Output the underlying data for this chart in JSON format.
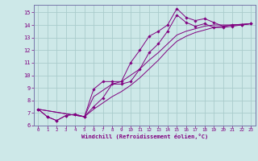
{
  "xlabel": "Windchill (Refroidissement éolien,°C)",
  "bg_color": "#cde8e8",
  "grid_color": "#aacccc",
  "line_color": "#800080",
  "spine_color": "#7777aa",
  "xlim": [
    -0.5,
    23.5
  ],
  "ylim": [
    6,
    15.6
  ],
  "xticks": [
    0,
    1,
    2,
    3,
    4,
    5,
    6,
    7,
    8,
    9,
    10,
    11,
    12,
    13,
    14,
    15,
    16,
    17,
    18,
    19,
    20,
    21,
    22,
    23
  ],
  "yticks": [
    6,
    7,
    8,
    9,
    10,
    11,
    12,
    13,
    14,
    15
  ],
  "lines": [
    {
      "x": [
        0,
        1,
        2,
        3,
        4,
        5,
        6,
        7,
        8,
        9,
        10,
        11,
        12,
        13,
        14,
        15,
        16,
        17,
        18,
        19,
        20,
        21,
        22,
        23
      ],
      "y": [
        7.3,
        6.7,
        6.4,
        6.8,
        6.9,
        6.7,
        8.9,
        9.5,
        9.5,
        9.5,
        11.0,
        12.0,
        13.1,
        13.5,
        14.0,
        15.3,
        14.6,
        14.35,
        14.5,
        14.2,
        13.9,
        14.0,
        14.0,
        14.1
      ],
      "has_markers": true
    },
    {
      "x": [
        0,
        1,
        2,
        3,
        4,
        5,
        6,
        7,
        8,
        9,
        10,
        11,
        12,
        13,
        14,
        15,
        16,
        17,
        18,
        19,
        20,
        21,
        22,
        23
      ],
      "y": [
        7.3,
        6.7,
        6.4,
        6.8,
        6.9,
        6.7,
        7.5,
        8.2,
        9.3,
        9.3,
        9.5,
        10.5,
        11.8,
        12.5,
        13.5,
        14.8,
        14.2,
        13.9,
        14.1,
        13.8,
        13.8,
        13.9,
        14.0,
        14.1
      ],
      "has_markers": true
    },
    {
      "x": [
        0,
        5,
        6,
        7,
        8,
        9,
        10,
        11,
        12,
        13,
        14,
        15,
        16,
        17,
        18,
        19,
        20,
        21,
        22,
        23
      ],
      "y": [
        7.3,
        6.7,
        8.3,
        8.8,
        9.3,
        9.5,
        10.0,
        10.5,
        11.2,
        11.8,
        12.5,
        13.2,
        13.5,
        13.7,
        13.9,
        14.0,
        14.0,
        14.0,
        14.05,
        14.1
      ],
      "has_markers": false
    },
    {
      "x": [
        0,
        5,
        6,
        7,
        8,
        9,
        10,
        11,
        12,
        13,
        14,
        15,
        16,
        17,
        18,
        19,
        20,
        21,
        22,
        23
      ],
      "y": [
        7.3,
        6.7,
        7.3,
        7.8,
        8.3,
        8.7,
        9.2,
        9.8,
        10.5,
        11.2,
        12.0,
        12.7,
        13.1,
        13.4,
        13.6,
        13.8,
        13.9,
        14.0,
        14.05,
        14.1
      ],
      "has_markers": false
    }
  ]
}
